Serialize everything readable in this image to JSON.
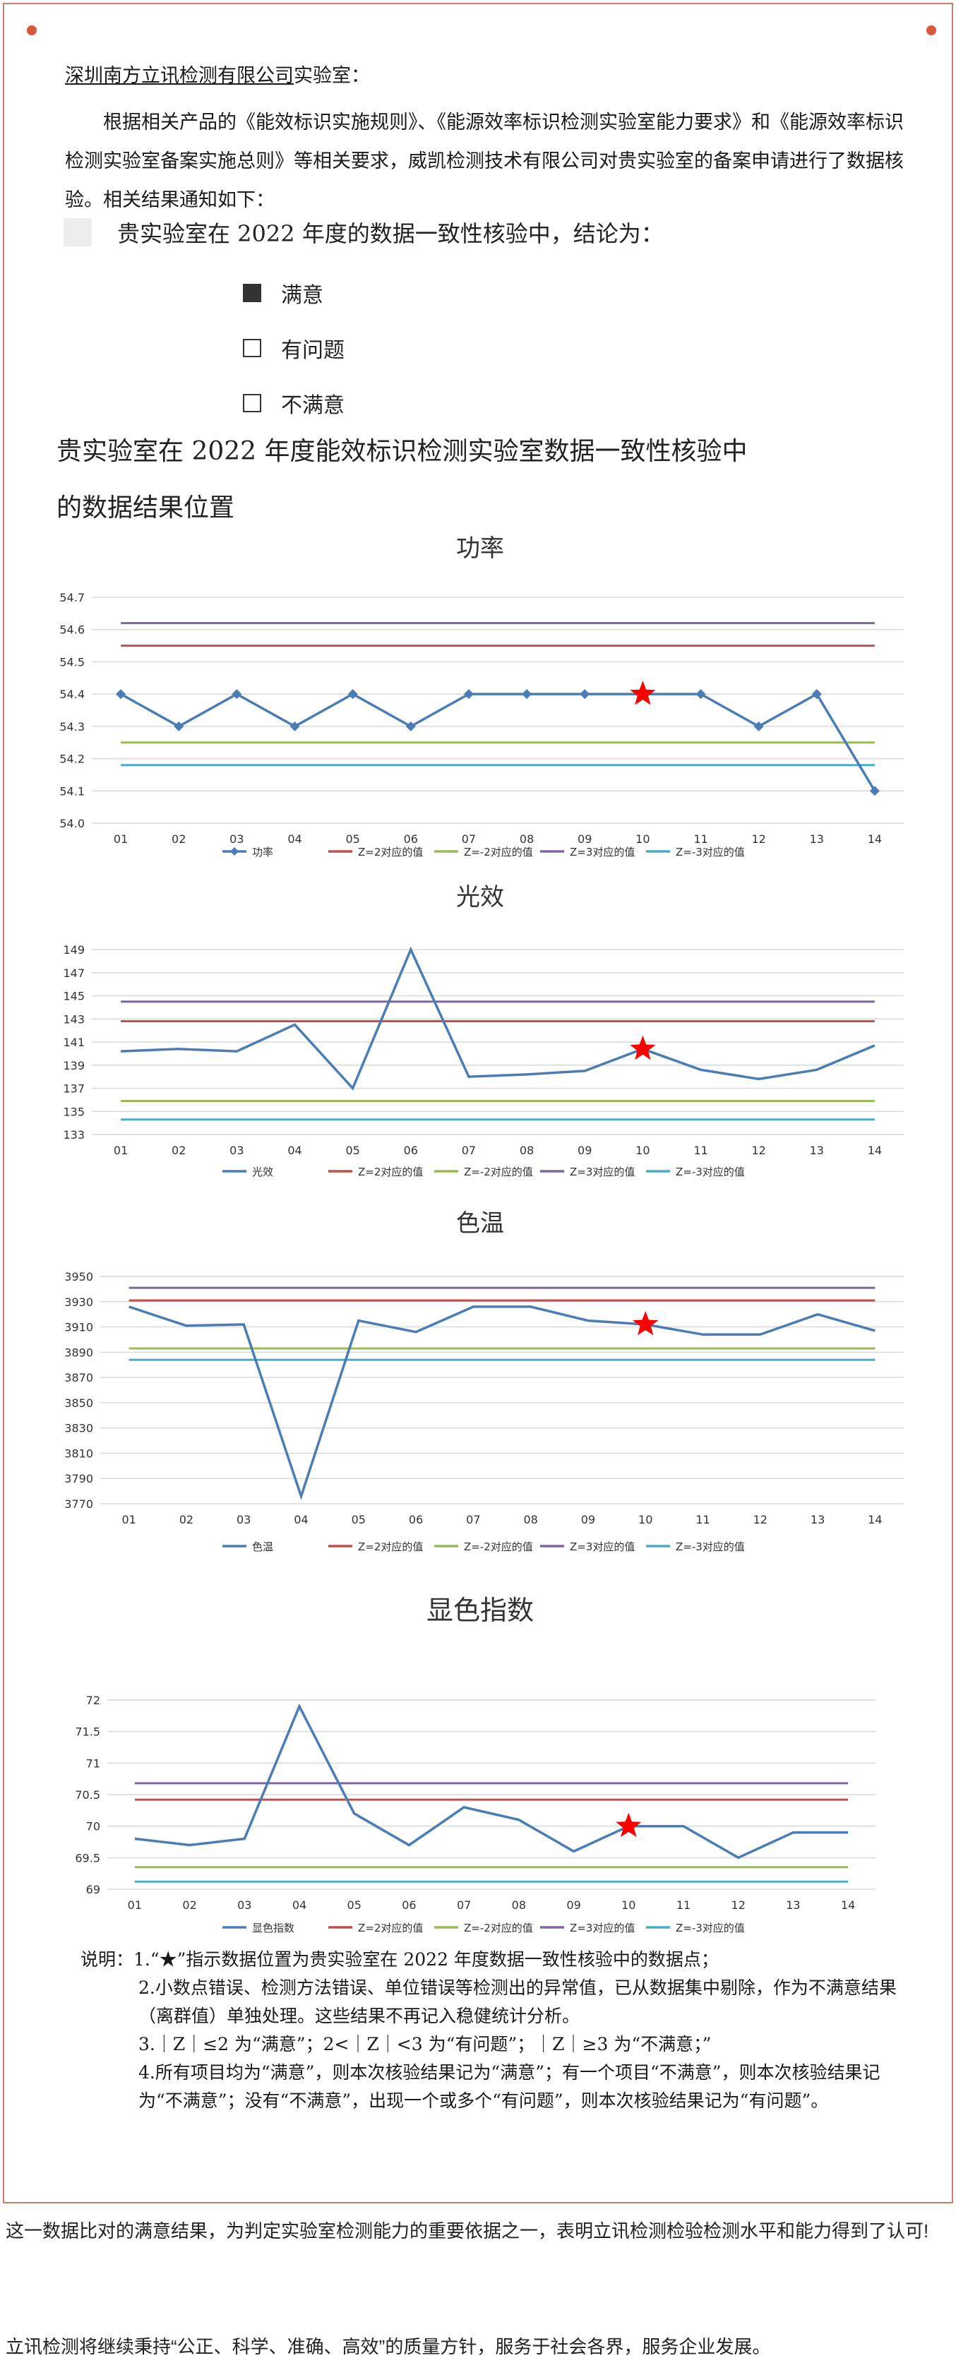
{
  "letter": {
    "addressee_underlined": "深圳南方立讯检测有限公司",
    "addressee_suffix": "实验室：",
    "paragraph": "根据相关产品的《能效标识实施规则》、《能源效率标识检测实验室能力要求》和《能源效率标识检测实验室备案实施总则》等相关要求，威凯检测技术有限公司对贵实验室的备案申请进行了数据核验。相关结果通知如下：",
    "conclusion": "贵实验室在 2022 年度的数据一致性核验中，结论为：",
    "options": [
      {
        "label": "满意",
        "checked": true
      },
      {
        "label": "有问题",
        "checked": false
      },
      {
        "label": "不满意",
        "checked": false
      }
    ],
    "section_title_1": "贵实验室在 2022 年度能效标识检测实验室数据一致性核验中",
    "section_title_2": "的数据结果位置"
  },
  "chart_data": [
    {
      "type": "line",
      "title": "功率",
      "categories": [
        "01",
        "02",
        "03",
        "04",
        "05",
        "06",
        "07",
        "08",
        "09",
        "10",
        "11",
        "12",
        "13",
        "14"
      ],
      "ylim": [
        54.0,
        54.7
      ],
      "yticks": [
        "54.0",
        "54.1",
        "54.2",
        "54.3",
        "54.4",
        "54.5",
        "54.6",
        "54.7"
      ],
      "grid": true,
      "legend": "bottom",
      "highlight_index": 9,
      "series": [
        {
          "name": "功率",
          "color": "#4a7db5",
          "markers": true,
          "values": [
            54.4,
            54.3,
            54.4,
            54.3,
            54.4,
            54.3,
            54.4,
            54.4,
            54.4,
            54.4,
            54.4,
            54.3,
            54.4,
            54.1
          ]
        },
        {
          "name": "Z=2对应的值",
          "color": "#c0504d",
          "values": [
            54.55,
            54.55,
            54.55,
            54.55,
            54.55,
            54.55,
            54.55,
            54.55,
            54.55,
            54.55,
            54.55,
            54.55,
            54.55,
            54.55
          ]
        },
        {
          "name": "Z=-2对应的值",
          "color": "#9bbb59",
          "values": [
            54.25,
            54.25,
            54.25,
            54.25,
            54.25,
            54.25,
            54.25,
            54.25,
            54.25,
            54.25,
            54.25,
            54.25,
            54.25,
            54.25
          ]
        },
        {
          "name": "Z=3对应的值",
          "color": "#8064a2",
          "values": [
            54.62,
            54.62,
            54.62,
            54.62,
            54.62,
            54.62,
            54.62,
            54.62,
            54.62,
            54.62,
            54.62,
            54.62,
            54.62,
            54.62
          ]
        },
        {
          "name": "Z=-3对应的值",
          "color": "#4bacc6",
          "values": [
            54.18,
            54.18,
            54.18,
            54.18,
            54.18,
            54.18,
            54.18,
            54.18,
            54.18,
            54.18,
            54.18,
            54.18,
            54.18,
            54.18
          ]
        }
      ]
    },
    {
      "type": "line",
      "title": "光效",
      "categories": [
        "01",
        "02",
        "03",
        "04",
        "05",
        "06",
        "07",
        "08",
        "09",
        "10",
        "11",
        "12",
        "13",
        "14"
      ],
      "ylim": [
        133,
        149
      ],
      "yticks": [
        "133",
        "135",
        "137",
        "139",
        "141",
        "143",
        "145",
        "147",
        "149"
      ],
      "grid": true,
      "legend": "bottom",
      "highlight_index": 9,
      "series": [
        {
          "name": "光效",
          "color": "#4a7db5",
          "values": [
            140.2,
            140.4,
            140.2,
            142.5,
            137.0,
            149.0,
            138.0,
            138.2,
            138.5,
            140.4,
            138.6,
            137.8,
            138.6,
            140.7
          ]
        },
        {
          "name": "Z=2对应的值",
          "color": "#c0504d",
          "values": [
            142.8,
            142.8,
            142.8,
            142.8,
            142.8,
            142.8,
            142.8,
            142.8,
            142.8,
            142.8,
            142.8,
            142.8,
            142.8,
            142.8
          ]
        },
        {
          "name": "Z=-2对应的值",
          "color": "#9bbb59",
          "values": [
            135.9,
            135.9,
            135.9,
            135.9,
            135.9,
            135.9,
            135.9,
            135.9,
            135.9,
            135.9,
            135.9,
            135.9,
            135.9,
            135.9
          ]
        },
        {
          "name": "Z=3对应的值",
          "color": "#8064a2",
          "values": [
            144.5,
            144.5,
            144.5,
            144.5,
            144.5,
            144.5,
            144.5,
            144.5,
            144.5,
            144.5,
            144.5,
            144.5,
            144.5,
            144.5
          ]
        },
        {
          "name": "Z=-3对应的值",
          "color": "#4bacc6",
          "values": [
            134.3,
            134.3,
            134.3,
            134.3,
            134.3,
            134.3,
            134.3,
            134.3,
            134.3,
            134.3,
            134.3,
            134.3,
            134.3,
            134.3
          ]
        }
      ]
    },
    {
      "type": "line",
      "title": "色温",
      "categories": [
        "01",
        "02",
        "03",
        "04",
        "05",
        "06",
        "07",
        "08",
        "09",
        "10",
        "11",
        "12",
        "13",
        "14"
      ],
      "ylim": [
        3770,
        3950
      ],
      "yticks": [
        "3770",
        "3790",
        "3810",
        "3830",
        "3850",
        "3870",
        "3890",
        "3910",
        "3930",
        "3950"
      ],
      "grid": true,
      "legend": "bottom",
      "highlight_index": 9,
      "series": [
        {
          "name": "色温",
          "color": "#4a7db5",
          "values": [
            3926,
            3911,
            3912,
            3776,
            3915,
            3906,
            3926,
            3926,
            3915,
            3912,
            3904,
            3904,
            3920,
            3907
          ]
        },
        {
          "name": "Z=2对应的值",
          "color": "#c0504d",
          "values": [
            3931,
            3931,
            3931,
            3931,
            3931,
            3931,
            3931,
            3931,
            3931,
            3931,
            3931,
            3931,
            3931,
            3931
          ]
        },
        {
          "name": "Z=-2对应的值",
          "color": "#9bbb59",
          "values": [
            3893,
            3893,
            3893,
            3893,
            3893,
            3893,
            3893,
            3893,
            3893,
            3893,
            3893,
            3893,
            3893,
            3893
          ]
        },
        {
          "name": "Z=3对应的值",
          "color": "#8064a2",
          "values": [
            3941,
            3941,
            3941,
            3941,
            3941,
            3941,
            3941,
            3941,
            3941,
            3941,
            3941,
            3941,
            3941,
            3941
          ]
        },
        {
          "name": "Z=-3对应的值",
          "color": "#4bacc6",
          "values": [
            3884,
            3884,
            3884,
            3884,
            3884,
            3884,
            3884,
            3884,
            3884,
            3884,
            3884,
            3884,
            3884,
            3884
          ]
        }
      ]
    },
    {
      "type": "line",
      "title": "显色指数",
      "categories": [
        "01",
        "02",
        "03",
        "04",
        "05",
        "06",
        "07",
        "08",
        "09",
        "10",
        "11",
        "12",
        "13",
        "14"
      ],
      "ylim": [
        69,
        72
      ],
      "yticks": [
        "69",
        "69.5",
        "70",
        "70.5",
        "71",
        "71.5",
        "72"
      ],
      "grid": true,
      "legend": "bottom",
      "highlight_index": 9,
      "series": [
        {
          "name": "显色指数",
          "color": "#4a7db5",
          "values": [
            69.8,
            69.7,
            69.8,
            71.9,
            70.2,
            69.7,
            70.3,
            70.1,
            69.6,
            70.0,
            70.0,
            69.5,
            69.9,
            69.9
          ]
        },
        {
          "name": "Z=2对应的值",
          "color": "#c0504d",
          "values": [
            70.42,
            70.42,
            70.42,
            70.42,
            70.42,
            70.42,
            70.42,
            70.42,
            70.42,
            70.42,
            70.42,
            70.42,
            70.42,
            70.42
          ]
        },
        {
          "name": "Z=-2对应的值",
          "color": "#9bbb59",
          "values": [
            69.35,
            69.35,
            69.35,
            69.35,
            69.35,
            69.35,
            69.35,
            69.35,
            69.35,
            69.35,
            69.35,
            69.35,
            69.35,
            69.35
          ]
        },
        {
          "name": "Z=3对应的值",
          "color": "#8064a2",
          "values": [
            70.68,
            70.68,
            70.68,
            70.68,
            70.68,
            70.68,
            70.68,
            70.68,
            70.68,
            70.68,
            70.68,
            70.68,
            70.68,
            70.68
          ]
        },
        {
          "name": "Z=-3对应的值",
          "color": "#4bacc6",
          "values": [
            69.12,
            69.12,
            69.12,
            69.12,
            69.12,
            69.12,
            69.12,
            69.12,
            69.12,
            69.12,
            69.12,
            69.12,
            69.12,
            69.12
          ]
        }
      ]
    }
  ],
  "notes": {
    "lead": "说明：1.“★”指示数据位置为贵实验室在 2022 年度数据一致性核验中的数据点；",
    "n2": "2.小数点错误、检测方法错误、单位错误等检测出的异常值，已从数据集中剔除，作为不满意结果（离群值）单独处理。这些结果不再记入稳健统计分析。",
    "n3": "3.｜Z｜≤2 为“满意”；2<｜Z｜<3 为“有问题”；｜Z｜≥3 为“不满意；”",
    "n4": "4.所有项目均为“满意”，则本次核验结果记为“满意”；有一个项目“不满意”，则本次核验结果记为“不满意”；没有“不满意”，出现一个或多个“有问题”，则本次核验结果记为“有问题”。"
  },
  "footer": {
    "line1": "这一数据比对的满意结果，为判定实验室检测能力的重要依据之一，表明立讯检测检验检测水平和能力得到了认可!",
    "line2": "立讯检测将继续秉持“公正、科学、准确、高效”的质量方针，服务于社会各界，服务企业发展。"
  },
  "colors": {
    "frame": "#c9826a",
    "dot": "#d9573a",
    "star": "#ff0000"
  }
}
